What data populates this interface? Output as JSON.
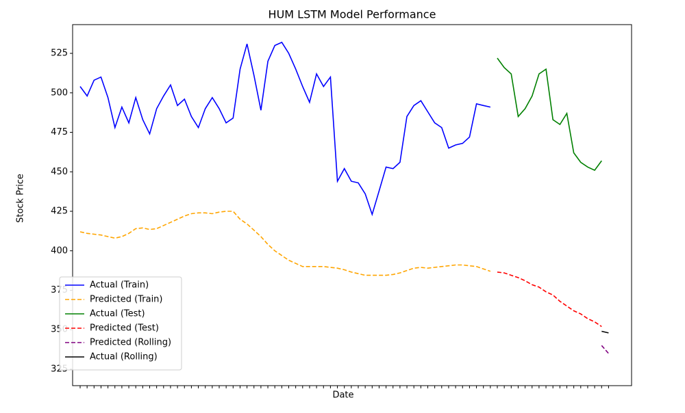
{
  "chart_data": {
    "type": "line",
    "title": "HUM LSTM Model Performance",
    "x_label": "Date",
    "y_label": "Stock Price",
    "categories": [
      null,
      null,
      null,
      null,
      null,
      null,
      null,
      null,
      null,
      null,
      null,
      null,
      null,
      null,
      null,
      null,
      null,
      null,
      null,
      null,
      null,
      null,
      null,
      null,
      null,
      null,
      null,
      null,
      null,
      null,
      null,
      null,
      null,
      null,
      null,
      null,
      null,
      null,
      null,
      null,
      null,
      null,
      null,
      null,
      null,
      null,
      null,
      null,
      null,
      null,
      null,
      null,
      null,
      null,
      null,
      null,
      null,
      null,
      null,
      null,
      null,
      null,
      null,
      null,
      null,
      null,
      null,
      null,
      null,
      null,
      null,
      null,
      null,
      null,
      null,
      null,
      null
    ],
    "ylim": [
      314.6,
      543.2
    ],
    "yticks": [
      325,
      350,
      375,
      400,
      425,
      450,
      475,
      500,
      525
    ],
    "legend": "lower left",
    "series": [
      {
        "name": "Actual (Train)",
        "color": "blue",
        "dash": false,
        "values": [
          504,
          498,
          508,
          510,
          497,
          478,
          491,
          481,
          497,
          483,
          474,
          490,
          498,
          505,
          492,
          496,
          485,
          478,
          490,
          497,
          490,
          481,
          484,
          515,
          531,
          511,
          489,
          520,
          530,
          532,
          525,
          515,
          504,
          494,
          512,
          504,
          510,
          444,
          452,
          444,
          443,
          436,
          423,
          438,
          453,
          452,
          456,
          485,
          492,
          495,
          488,
          481,
          478,
          465,
          467,
          468,
          472,
          493,
          492,
          491,
          null,
          null,
          null,
          null,
          null,
          null,
          null,
          null,
          null,
          null,
          null,
          null,
          null,
          null,
          null,
          null,
          null
        ]
      },
      {
        "name": "Predicted (Train)",
        "color": "orange",
        "dash": true,
        "values": [
          412,
          411,
          410.5,
          410,
          409,
          408,
          409,
          411,
          414,
          414.5,
          413.5,
          414,
          416,
          418,
          420,
          422,
          423.5,
          424,
          424,
          423.5,
          424.5,
          425,
          425,
          420,
          417,
          413,
          409,
          404,
          400,
          397,
          394,
          392,
          390,
          390,
          390,
          390,
          389.5,
          389,
          388,
          386.5,
          385.5,
          384.5,
          384.5,
          384.5,
          384.5,
          385,
          386,
          387.5,
          389,
          389.5,
          389,
          389.5,
          390,
          390.5,
          391,
          391,
          390.5,
          390,
          388.5,
          387,
          null,
          null,
          null,
          null,
          null,
          null,
          null,
          null,
          null,
          null,
          null,
          null,
          null,
          null,
          null,
          null,
          null
        ]
      },
      {
        "name": "Actual (Test)",
        "color": "green",
        "dash": false,
        "values": [
          null,
          null,
          null,
          null,
          null,
          null,
          null,
          null,
          null,
          null,
          null,
          null,
          null,
          null,
          null,
          null,
          null,
          null,
          null,
          null,
          null,
          null,
          null,
          null,
          null,
          null,
          null,
          null,
          null,
          null,
          null,
          null,
          null,
          null,
          null,
          null,
          null,
          null,
          null,
          null,
          null,
          null,
          null,
          null,
          null,
          null,
          null,
          null,
          null,
          null,
          null,
          null,
          null,
          null,
          null,
          null,
          null,
          null,
          null,
          null,
          522,
          516,
          512,
          485,
          490,
          498,
          512,
          515,
          483,
          480,
          487,
          462,
          456,
          453,
          451,
          457,
          null
        ]
      },
      {
        "name": "Predicted (Test)",
        "color": "red",
        "dash": true,
        "values": [
          null,
          null,
          null,
          null,
          null,
          null,
          null,
          null,
          null,
          null,
          null,
          null,
          null,
          null,
          null,
          null,
          null,
          null,
          null,
          null,
          null,
          null,
          null,
          null,
          null,
          null,
          null,
          null,
          null,
          null,
          null,
          null,
          null,
          null,
          null,
          null,
          null,
          null,
          null,
          null,
          null,
          null,
          null,
          null,
          null,
          null,
          null,
          null,
          null,
          null,
          null,
          null,
          null,
          null,
          null,
          null,
          null,
          null,
          null,
          null,
          386.5,
          386,
          384.5,
          383,
          381,
          378.5,
          377,
          374,
          372,
          368,
          365,
          362,
          360,
          357,
          355,
          352,
          null
        ]
      },
      {
        "name": "Predicted (Rolling)",
        "color": "purple",
        "dash": true,
        "values": [
          null,
          null,
          null,
          null,
          null,
          null,
          null,
          null,
          null,
          null,
          null,
          null,
          null,
          null,
          null,
          null,
          null,
          null,
          null,
          null,
          null,
          null,
          null,
          null,
          null,
          null,
          null,
          null,
          null,
          null,
          null,
          null,
          null,
          null,
          null,
          null,
          null,
          null,
          null,
          null,
          null,
          null,
          null,
          null,
          null,
          null,
          null,
          null,
          null,
          null,
          null,
          null,
          null,
          null,
          null,
          null,
          null,
          null,
          null,
          null,
          null,
          null,
          null,
          null,
          null,
          null,
          null,
          null,
          null,
          null,
          null,
          null,
          null,
          null,
          null,
          340,
          335
        ]
      },
      {
        "name": "Actual (Rolling)",
        "color": "black",
        "dash": false,
        "values": [
          null,
          null,
          null,
          null,
          null,
          null,
          null,
          null,
          null,
          null,
          null,
          null,
          null,
          null,
          null,
          null,
          null,
          null,
          null,
          null,
          null,
          null,
          null,
          null,
          null,
          null,
          null,
          null,
          null,
          null,
          null,
          null,
          null,
          null,
          null,
          null,
          null,
          null,
          null,
          null,
          null,
          null,
          null,
          null,
          null,
          null,
          null,
          null,
          null,
          null,
          null,
          null,
          null,
          null,
          null,
          null,
          null,
          null,
          null,
          null,
          null,
          null,
          null,
          null,
          null,
          null,
          null,
          null,
          null,
          null,
          null,
          null,
          null,
          null,
          null,
          349,
          348
        ]
      }
    ]
  }
}
